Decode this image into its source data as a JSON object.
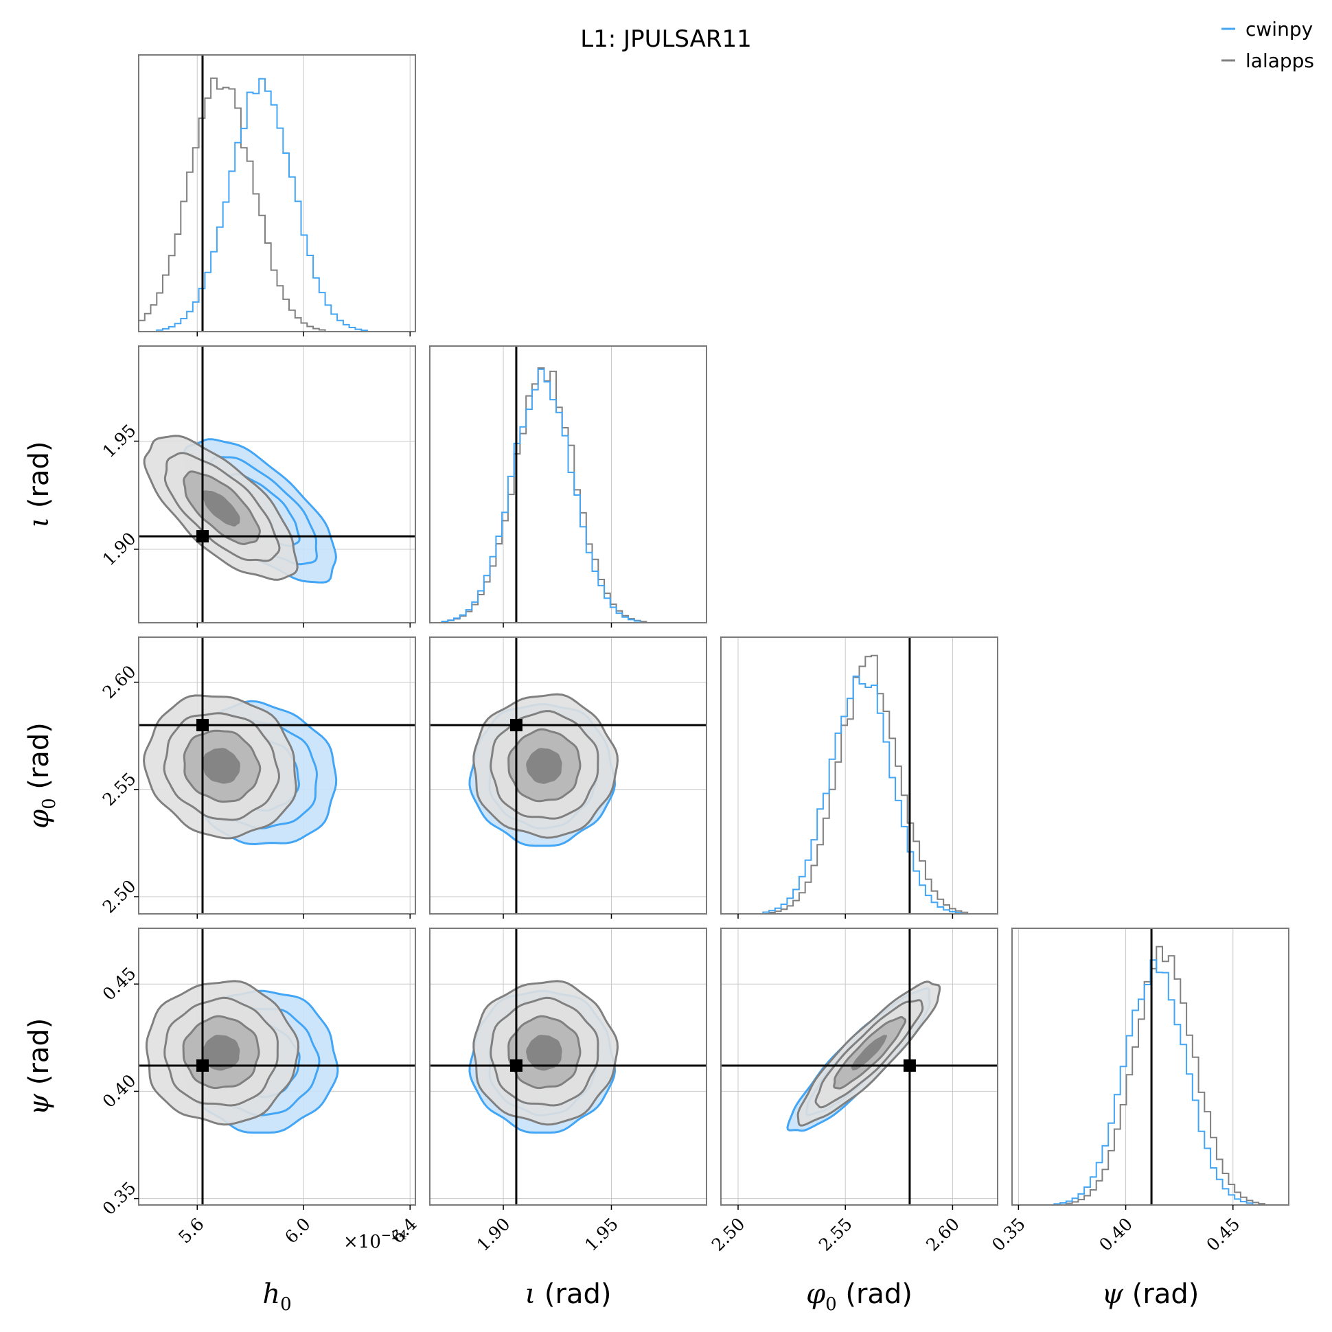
{
  "figure": {
    "title": "L1: JPULSAR11",
    "multiplier": "×10",
    "multiplier_exp": "−24"
  },
  "legend": {
    "placement": "top-right",
    "entries": [
      {
        "label": "cwinpy",
        "color": "#42a5f5"
      },
      {
        "label": "lalapps",
        "color": "#808080"
      }
    ]
  },
  "axis_labels": {
    "h0": {
      "sym": "h",
      "sub": "0",
      "unit": ""
    },
    "iota": {
      "sym": "ι",
      "sub": "",
      "unit": " (rad)"
    },
    "phi0": {
      "sym": "φ",
      "sub": "0",
      "unit": " (rad)"
    },
    "psi": {
      "sym": "ψ",
      "sub": "",
      "unit": " (rad)"
    }
  },
  "colors": {
    "cwinpy": "#42a5f5",
    "cwinpy_fill": "#c8e2fb",
    "lalapps": "#808080",
    "lalapps_fill": "#e0e0e0",
    "lalapps_fill_mid": "#b5b5b5",
    "lalapps_fill_core": "#7f7f7f",
    "truth": "#000000",
    "grid": "#c8c8c8",
    "frame": "#7a7a7a"
  },
  "chart_data": {
    "type": "corner",
    "parameters": [
      {
        "key": "h0",
        "range": [
          5.38,
          6.42
        ],
        "ticks": [
          5.6,
          6.0,
          6.4
        ],
        "tick_labels": [
          "5.6",
          "6.0",
          "6.4"
        ],
        "truth": 5.62
      },
      {
        "key": "iota",
        "range": [
          1.866,
          1.994
        ],
        "ticks": [
          1.9,
          1.95
        ],
        "tick_labels": [
          "1.90",
          "1.95"
        ],
        "truth": 1.906
      },
      {
        "key": "phi0",
        "range": [
          2.492,
          2.621
        ],
        "ticks": [
          2.5,
          2.55,
          2.6
        ],
        "tick_labels": [
          "2.50",
          "2.55",
          "2.60"
        ],
        "truth": 2.58
      },
      {
        "key": "psi",
        "range": [
          0.347,
          0.476
        ],
        "ticks": [
          0.35,
          0.4,
          0.45
        ],
        "tick_labels": [
          "0.35",
          "0.40",
          "0.45"
        ],
        "truth": 0.412
      }
    ],
    "marginals": {
      "h0": {
        "cwinpy": {
          "mean": 5.84,
          "sd": 0.12
        },
        "lalapps": {
          "mean": 5.69,
          "sd": 0.12
        }
      },
      "iota": {
        "cwinpy": {
          "mean": 1.918,
          "sd": 0.014
        },
        "lalapps": {
          "mean": 1.919,
          "sd": 0.014
        }
      },
      "phi0": {
        "cwinpy": {
          "mean": 2.557,
          "sd": 0.014
        },
        "lalapps": {
          "mean": 2.561,
          "sd": 0.014
        }
      },
      "psi": {
        "cwinpy": {
          "mean": 0.414,
          "sd": 0.014
        },
        "lalapps": {
          "mean": 0.418,
          "sd": 0.014
        }
      }
    },
    "joint": [
      {
        "x": "h0",
        "y": "iota",
        "rho": {
          "cwinpy": -0.7,
          "lalapps": -0.7
        }
      },
      {
        "x": "h0",
        "y": "phi0",
        "rho": {
          "cwinpy": -0.1,
          "lalapps": -0.1
        }
      },
      {
        "x": "iota",
        "y": "phi0",
        "rho": {
          "cwinpy": 0.0,
          "lalapps": 0.0
        }
      },
      {
        "x": "h0",
        "y": "psi",
        "rho": {
          "cwinpy": 0.0,
          "lalapps": 0.0
        }
      },
      {
        "x": "iota",
        "y": "psi",
        "rho": {
          "cwinpy": 0.0,
          "lalapps": 0.0
        }
      },
      {
        "x": "phi0",
        "y": "psi",
        "rho": {
          "cwinpy": 0.9,
          "lalapps": 0.9
        }
      }
    ],
    "contour_levels_sigma": [
      0.5,
      1.0,
      1.5,
      2.0
    ],
    "grid": true
  }
}
